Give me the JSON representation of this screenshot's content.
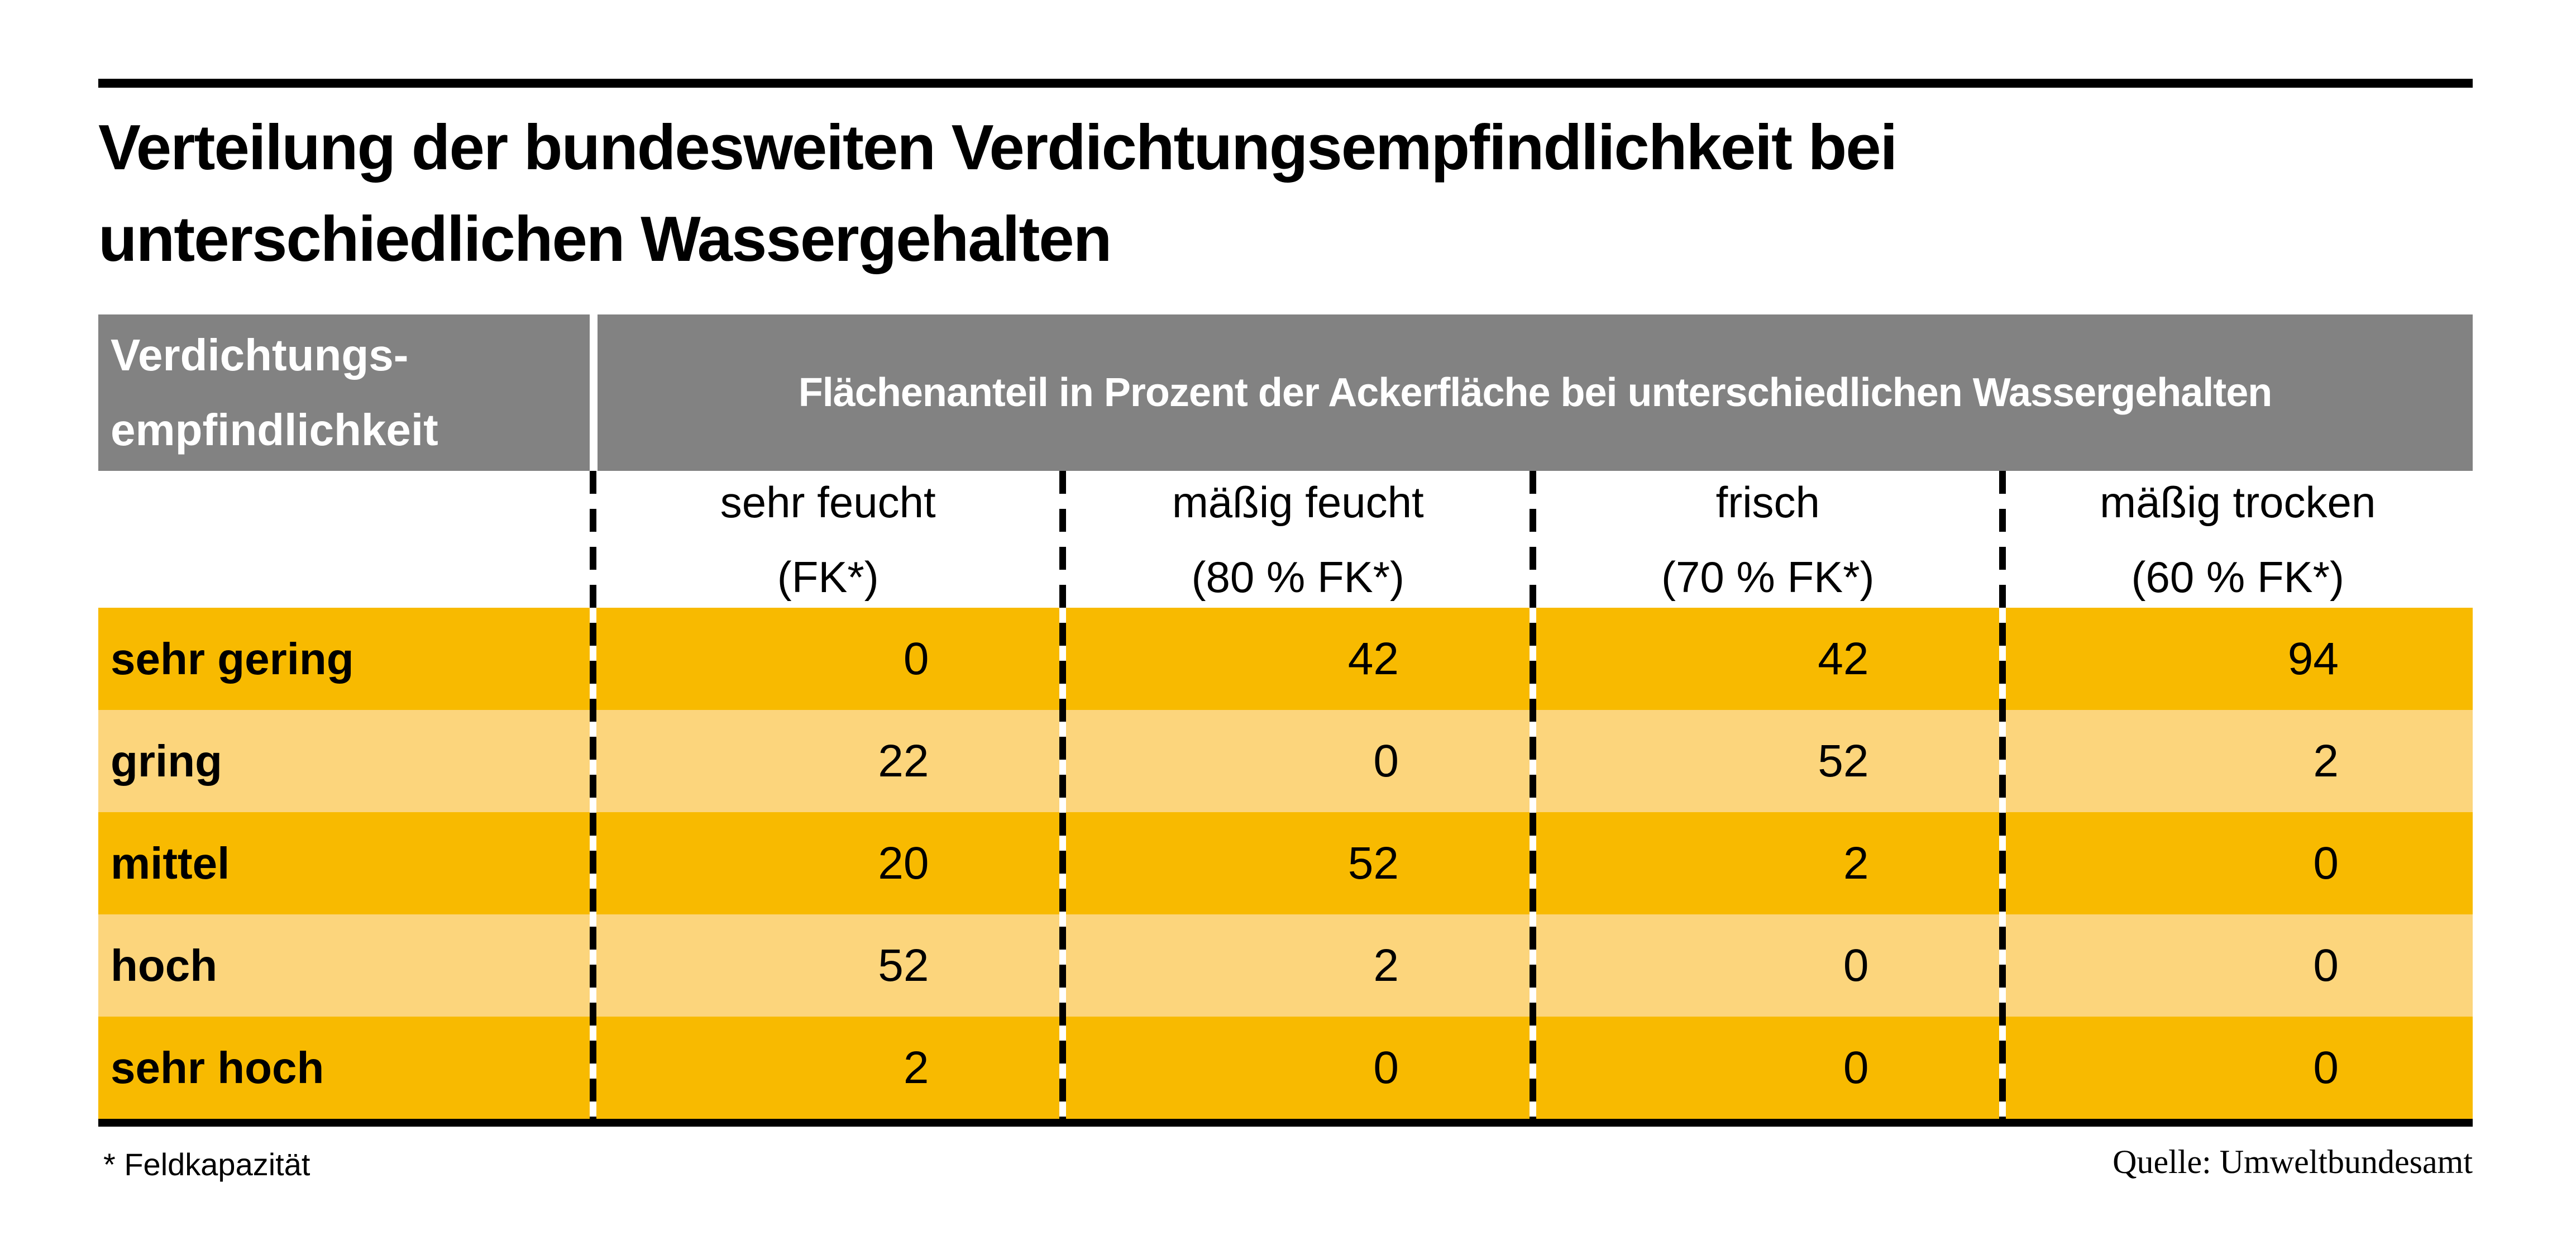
{
  "ui": {
    "title_lines": [
      "Verteilung der bundesweiten Verdichtungsempfindlichkeit bei",
      "unterschiedlichen Wassergehalten"
    ],
    "corner_lines": [
      "Verdichtungs-",
      "empfindlichkeit"
    ],
    "columns": [
      {
        "label": "sehr feucht",
        "sub": "(FK*)"
      },
      {
        "label": "mäßig feucht",
        "sub": "(80 % FK*)"
      },
      {
        "label": "frisch",
        "sub": "(70 % FK*)"
      },
      {
        "label": "mäßig trocken",
        "sub": "(60 % FK*)"
      }
    ],
    "colors": {
      "row_dark": "#F8BA00",
      "row_light": "#FCD57C",
      "header_gray": "#828282",
      "rule_black": "#000000"
    }
  },
  "chart_data": {
    "type": "table",
    "title": "Verteilung der bundesweiten Verdichtungsempfindlichkeit bei unterschiedlichen Wassergehalten",
    "row_group_header": "Verdichtungsempfindlichkeit",
    "column_group_label": "Flächenanteil in Prozent der Ackerfläche bei unterschiedlichen Wassergehalten",
    "columns": [
      "sehr feucht (FK*)",
      "mäßig feucht (80 % FK*)",
      "frisch (70 % FK*)",
      "mäßig trocken (60 % FK*)"
    ],
    "rows": [
      "sehr gering",
      "gring",
      "mittel",
      "hoch",
      "sehr hoch"
    ],
    "values": [
      [
        0,
        42,
        42,
        94
      ],
      [
        22,
        0,
        52,
        2
      ],
      [
        20,
        52,
        2,
        0
      ],
      [
        52,
        2,
        0,
        0
      ],
      [
        2,
        0,
        0,
        0
      ]
    ],
    "unit": "Prozent der Ackerfläche",
    "footnote": "* Feldkapazität",
    "source": "Quelle: Umweltbundesamt"
  }
}
